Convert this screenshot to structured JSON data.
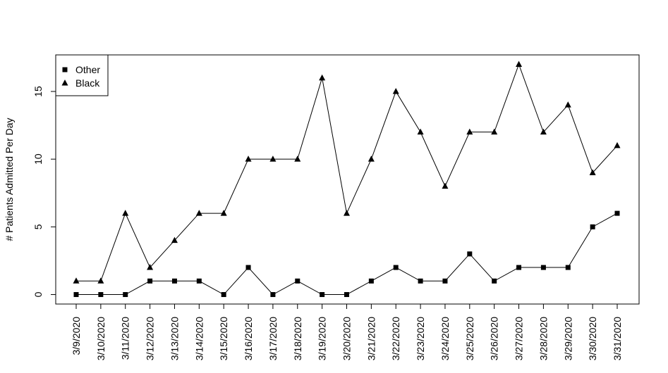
{
  "chart_data": {
    "type": "line",
    "title": "",
    "xlabel": "",
    "ylabel": "# Patients Admitted Per Day",
    "categories": [
      "3/9/2020",
      "3/10/2020",
      "3/11/2020",
      "3/12/2020",
      "3/13/2020",
      "3/14/2020",
      "3/15/2020",
      "3/16/2020",
      "3/17/2020",
      "3/18/2020",
      "3/19/2020",
      "3/20/2020",
      "3/21/2020",
      "3/22/2020",
      "3/23/2020",
      "3/24/2020",
      "3/25/2020",
      "3/26/2020",
      "3/27/2020",
      "3/28/2020",
      "3/29/2020",
      "3/30/2020",
      "3/31/2020"
    ],
    "yticks": [
      0,
      5,
      10,
      15
    ],
    "ylim": [
      -0.7,
      17.7
    ],
    "grid": false,
    "legend_position": "top-left",
    "series": [
      {
        "name": "Other",
        "marker": "square",
        "color": "#000000",
        "values": [
          0,
          0,
          0,
          1,
          1,
          1,
          0,
          2,
          0,
          1,
          0,
          0,
          1,
          2,
          1,
          1,
          3,
          1,
          2,
          2,
          2,
          5,
          6
        ]
      },
      {
        "name": "Black",
        "marker": "triangle",
        "color": "#000000",
        "values": [
          1,
          1,
          6,
          2,
          4,
          6,
          6,
          10,
          10,
          10,
          16,
          6,
          10,
          15,
          12,
          8,
          12,
          12,
          17,
          12,
          14,
          9,
          11
        ]
      }
    ]
  }
}
